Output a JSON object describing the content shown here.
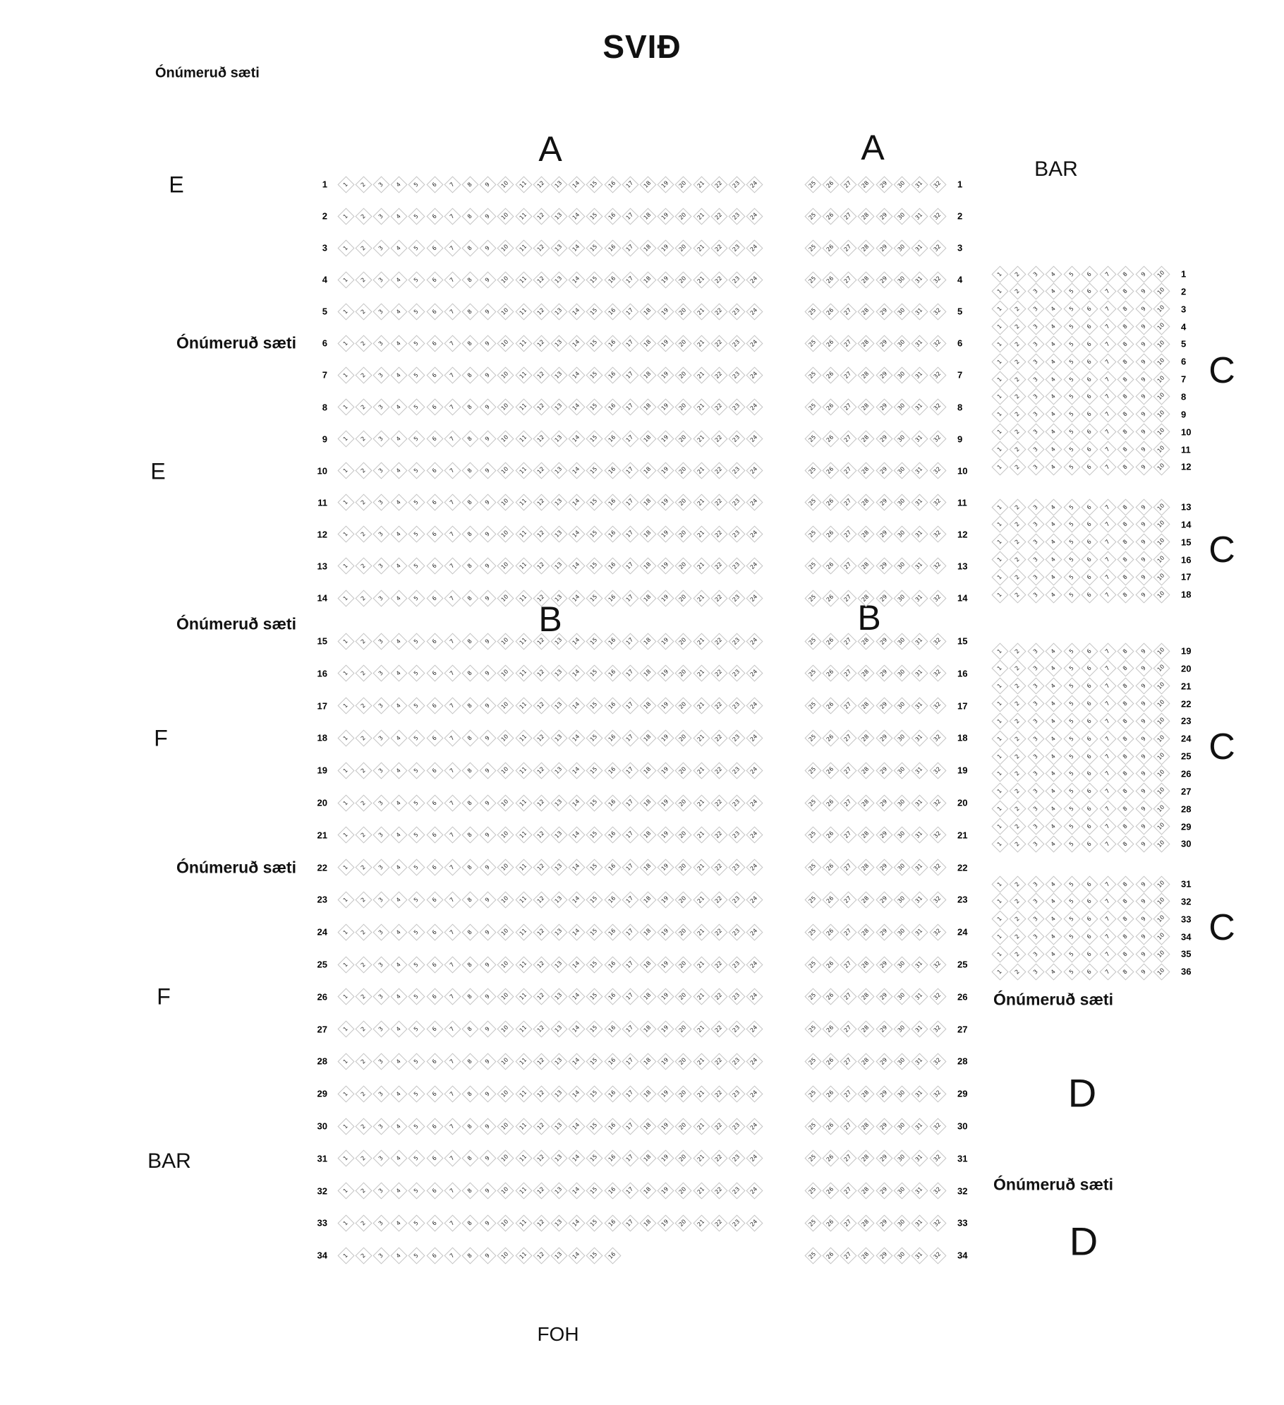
{
  "stage_label": "SVIÐ",
  "foh_label": "FOH",
  "labels": {
    "unnumbered_seats": "Ónúmeruð sæti",
    "bar": "BAR"
  },
  "sections": {
    "a": "A",
    "b": "B",
    "c": "C",
    "d": "D",
    "e": "E",
    "f": "F"
  },
  "seating": {
    "main": {
      "row_start": 1,
      "row_end": 34,
      "front_section": "A",
      "back_section": "B",
      "front_rows_end": 14,
      "left_block": {
        "seat_start": 1,
        "seat_end": 24
      },
      "left_block_last_row": {
        "row": 34,
        "seat_start": 1,
        "seat_end": 16
      },
      "right_block": {
        "seat_start": 25,
        "seat_end": 32
      }
    },
    "side": {
      "section": "C",
      "seat_start": 1,
      "seat_end": 10,
      "blocks": [
        {
          "row_start": 1,
          "row_end": 12
        },
        {
          "row_start": 13,
          "row_end": 18
        },
        {
          "row_start": 19,
          "row_end": 30
        },
        {
          "row_start": 31,
          "row_end": 36
        }
      ]
    }
  }
}
